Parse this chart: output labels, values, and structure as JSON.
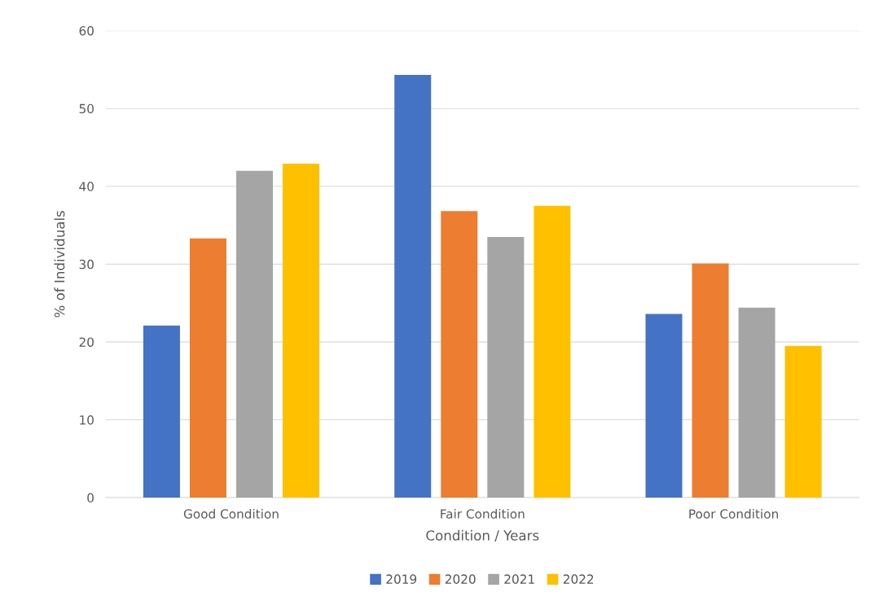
{
  "chart_data": {
    "type": "bar",
    "xlabel": "Condition / Years",
    "ylabel": "% of Individuals",
    "categories": [
      "Good Condition",
      "Fair Condition",
      "Poor Condition"
    ],
    "series": [
      {
        "name": "2019",
        "color": "#4472c4",
        "values": [
          22.1,
          54.3,
          23.6
        ]
      },
      {
        "name": "2020",
        "color": "#ed7d31",
        "values": [
          33.3,
          36.8,
          30.1
        ]
      },
      {
        "name": "2021",
        "color": "#a5a5a5",
        "values": [
          42.0,
          33.5,
          24.4
        ]
      },
      {
        "name": "2022",
        "color": "#ffc000",
        "values": [
          42.9,
          37.5,
          19.5
        ]
      }
    ],
    "ylim": [
      0,
      60
    ],
    "yticks": [
      0,
      10,
      20,
      30,
      40,
      50,
      60
    ],
    "grid": "y",
    "legend": "bottom"
  }
}
